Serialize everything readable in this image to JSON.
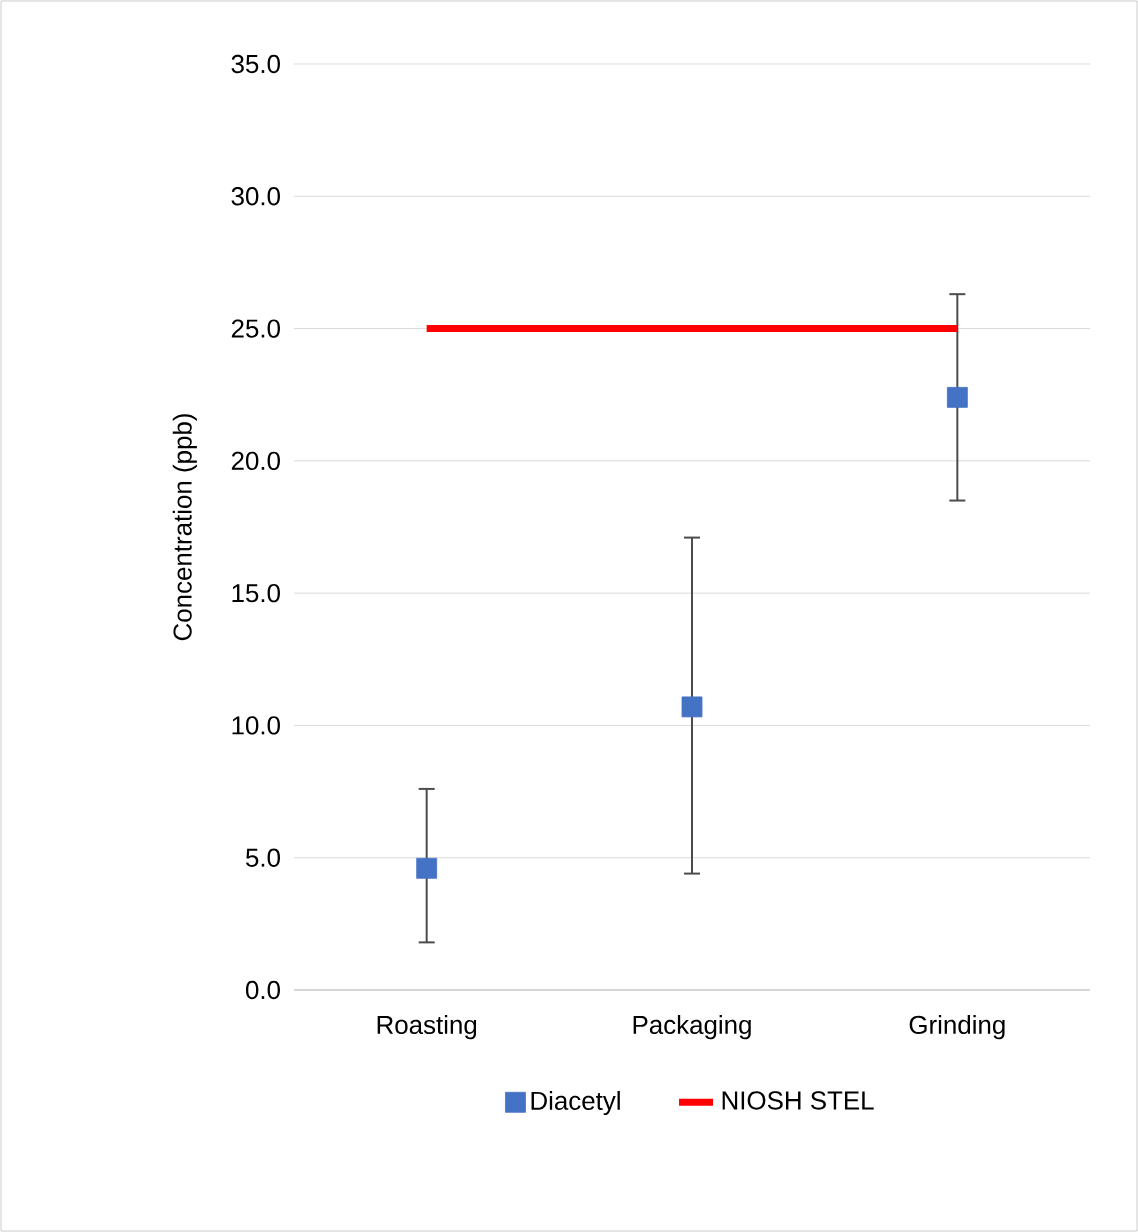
{
  "chart_data": {
    "type": "scatter",
    "ylabel": "Concentration (ppb)",
    "categories": [
      "Roasting",
      "Packaging",
      "Grinding"
    ],
    "series": [
      {
        "name": "Diacetyl",
        "color": "#4472c4",
        "marker": "square",
        "values": [
          4.6,
          10.7,
          22.4
        ],
        "errors": [
          [
            1.8,
            7.6
          ],
          [
            4.4,
            17.1
          ],
          [
            18.5,
            26.3
          ]
        ]
      },
      {
        "name": "NIOSH STEL",
        "type": "line",
        "color": "#ff0000",
        "marker": "none",
        "values": [
          25,
          25,
          25
        ]
      }
    ],
    "ylim": [
      0,
      35
    ],
    "yticks": [
      {
        "value": 0,
        "label": "0.0"
      },
      {
        "value": 5,
        "label": "5.0"
      },
      {
        "value": 10,
        "label": "10.0"
      },
      {
        "value": 15,
        "label": "15.0"
      },
      {
        "value": 20,
        "label": "20.0"
      },
      {
        "value": 25,
        "label": "25.0"
      },
      {
        "value": 30,
        "label": "30.0"
      },
      {
        "value": 35,
        "label": "35.0"
      }
    ],
    "grid": "y",
    "legend": "bottom"
  }
}
